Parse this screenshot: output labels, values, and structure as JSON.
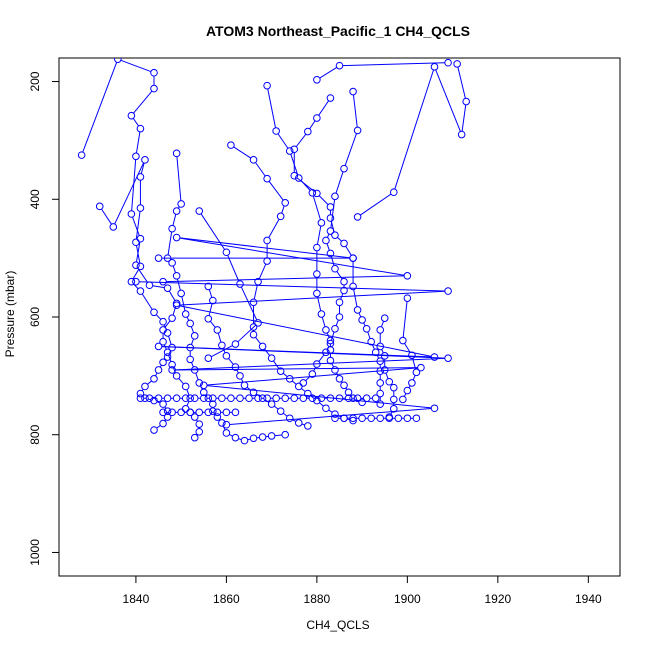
{
  "chart_data": {
    "type": "scatter",
    "title": "ATOM3 Northeast_Pacific_1 CH4_QCLS",
    "xlabel": "CH4_QCLS",
    "ylabel": "Pressure (mbar)",
    "xlim": [
      1823,
      1947
    ],
    "ylim": [
      1040,
      160
    ],
    "y_reversed": true,
    "x_ticks": [
      1840,
      1860,
      1880,
      1900,
      1920,
      1940
    ],
    "y_ticks": [
      200,
      400,
      600,
      800,
      1000
    ],
    "grid": false,
    "legend": "none",
    "series_color": "#0000FF",
    "series": [
      {
        "name": "",
        "points": [
          [
            1832,
            412
          ],
          [
            1835,
            447
          ],
          [
            1842,
            333
          ],
          [
            1841,
            362
          ],
          [
            1841,
            415
          ],
          [
            1840,
            473
          ],
          [
            1841,
            514
          ],
          [
            1839,
            540
          ],
          [
            1841,
            556
          ],
          [
            1844,
            592
          ],
          [
            1846,
            608
          ],
          [
            1847,
            627
          ],
          [
            1848,
            652
          ],
          [
            1847,
            668
          ],
          [
            1846,
            677
          ],
          [
            1845,
            690
          ],
          [
            1844,
            705
          ],
          [
            1842,
            718
          ],
          [
            1841,
            730
          ],
          [
            1842,
            738
          ],
          [
            1844,
            742
          ],
          [
            1846,
            748
          ],
          [
            1847,
            760
          ],
          [
            1847,
            770
          ],
          [
            1846,
            781
          ],
          [
            1844,
            792
          ]
        ]
      },
      {
        "name": "",
        "points": [
          [
            1828,
            325
          ],
          [
            1836,
            162
          ],
          [
            1844,
            185
          ],
          [
            1844,
            212
          ],
          [
            1839,
            258
          ],
          [
            1841,
            280
          ],
          [
            1840,
            327
          ],
          [
            1839,
            425
          ],
          [
            1841,
            467
          ],
          [
            1840,
            512
          ],
          [
            1843,
            546
          ],
          [
            1847,
            551
          ],
          [
            1849,
            577
          ],
          [
            1848,
            602
          ],
          [
            1846,
            622
          ],
          [
            1846,
            642
          ],
          [
            1847,
            660
          ],
          [
            1848,
            681
          ],
          [
            1849,
            700
          ],
          [
            1851,
            718
          ],
          [
            1852,
            738
          ],
          [
            1851,
            756
          ],
          [
            1852,
            762
          ],
          [
            1853,
            770
          ],
          [
            1854,
            782
          ],
          [
            1854,
            795
          ],
          [
            1853,
            805
          ]
        ]
      },
      {
        "name": "",
        "points": [
          [
            1849,
            322
          ],
          [
            1850,
            408
          ],
          [
            1849,
            420
          ],
          [
            1848,
            450
          ],
          [
            1847,
            500
          ],
          [
            1848,
            508
          ],
          [
            1849,
            530
          ],
          [
            1850,
            560
          ],
          [
            1851,
            595
          ],
          [
            1852,
            611
          ],
          [
            1853,
            632
          ],
          [
            1852,
            652
          ],
          [
            1852,
            672
          ],
          [
            1853,
            690
          ],
          [
            1854,
            712
          ],
          [
            1855,
            728
          ],
          [
            1856,
            738
          ],
          [
            1857,
            748
          ],
          [
            1857,
            760
          ],
          [
            1858,
            770
          ],
          [
            1859,
            780
          ],
          [
            1860,
            797
          ],
          [
            1862,
            805
          ],
          [
            1864,
            810
          ],
          [
            1866,
            806
          ],
          [
            1868,
            804
          ],
          [
            1870,
            802
          ],
          [
            1873,
            800
          ]
        ]
      },
      {
        "name": "",
        "points": [
          [
            1856,
            548
          ],
          [
            1857,
            572
          ],
          [
            1856,
            603
          ],
          [
            1858,
            622
          ],
          [
            1859,
            648
          ],
          [
            1860,
            666
          ],
          [
            1862,
            685
          ],
          [
            1863,
            700
          ],
          [
            1864,
            716
          ],
          [
            1866,
            728
          ],
          [
            1868,
            738
          ],
          [
            1870,
            748
          ],
          [
            1872,
            760
          ],
          [
            1874,
            772
          ],
          [
            1876,
            780
          ],
          [
            1878,
            785
          ]
        ]
      },
      {
        "name": "",
        "points": [
          [
            1861,
            308
          ],
          [
            1866,
            333
          ],
          [
            1869,
            365
          ],
          [
            1873,
            406
          ],
          [
            1872,
            429
          ],
          [
            1869,
            470
          ],
          [
            1869,
            505
          ],
          [
            1867,
            540
          ],
          [
            1866,
            575
          ],
          [
            1866,
            617
          ],
          [
            1866,
            630
          ],
          [
            1868,
            650
          ],
          [
            1870,
            670
          ],
          [
            1872,
            692
          ],
          [
            1874,
            705
          ],
          [
            1876,
            718
          ],
          [
            1878,
            730
          ],
          [
            1880,
            742
          ],
          [
            1882,
            755
          ],
          [
            1884,
            765
          ],
          [
            1886,
            772
          ],
          [
            1888,
            776
          ]
        ]
      },
      {
        "name": "",
        "points": [
          [
            1869,
            207
          ],
          [
            1871,
            284
          ],
          [
            1874,
            318
          ],
          [
            1876,
            364
          ],
          [
            1879,
            389
          ],
          [
            1881,
            440
          ],
          [
            1880,
            482
          ],
          [
            1880,
            527
          ],
          [
            1880,
            560
          ],
          [
            1881,
            595
          ],
          [
            1882,
            622
          ],
          [
            1883,
            640
          ],
          [
            1883,
            656
          ],
          [
            1883,
            674
          ],
          [
            1884,
            690
          ],
          [
            1885,
            705
          ],
          [
            1886,
            716
          ],
          [
            1887,
            728
          ],
          [
            1888,
            738
          ],
          [
            1890,
            745
          ]
        ]
      },
      {
        "name": "",
        "points": [
          [
            1883,
            228
          ],
          [
            1880,
            262
          ],
          [
            1878,
            285
          ],
          [
            1875,
            315
          ],
          [
            1875,
            360
          ],
          [
            1880,
            390
          ],
          [
            1883,
            413
          ],
          [
            1883,
            432
          ],
          [
            1884,
            461
          ],
          [
            1886,
            475
          ],
          [
            1888,
            500
          ],
          [
            1888,
            548
          ],
          [
            1889,
            588
          ],
          [
            1890,
            605
          ],
          [
            1891,
            620
          ],
          [
            1892,
            642
          ],
          [
            1893,
            660
          ],
          [
            1894,
            675
          ],
          [
            1894,
            692
          ],
          [
            1894,
            712
          ],
          [
            1894,
            730
          ],
          [
            1894,
            748
          ]
        ]
      },
      {
        "name": "",
        "points": [
          [
            1888,
            217
          ],
          [
            1889,
            283
          ],
          [
            1886,
            348
          ],
          [
            1884,
            395
          ],
          [
            1883,
            454
          ],
          [
            1882,
            470
          ],
          [
            1883,
            492
          ],
          [
            1884,
            518
          ],
          [
            1886,
            540
          ],
          [
            1886,
            555
          ],
          [
            1885,
            575
          ],
          [
            1885,
            600
          ],
          [
            1884,
            620
          ],
          [
            1883,
            645
          ],
          [
            1882,
            660
          ],
          [
            1880,
            680
          ],
          [
            1879,
            697
          ],
          [
            1877,
            712
          ]
        ]
      },
      {
        "name": "",
        "points": [
          [
            1889,
            430
          ],
          [
            1897,
            388
          ],
          [
            1906,
            175
          ],
          [
            1912,
            290
          ],
          [
            1913,
            234
          ],
          [
            1911,
            170
          ]
        ]
      },
      {
        "name": "",
        "points": [
          [
            1900,
            568
          ],
          [
            1899,
            640
          ],
          [
            1901,
            665
          ],
          [
            1902,
            694
          ],
          [
            1901,
            712
          ],
          [
            1900,
            725
          ],
          [
            1899,
            740
          ]
        ]
      },
      {
        "name": "",
        "points": [
          [
            1895,
            602
          ],
          [
            1894,
            622
          ],
          [
            1894,
            650
          ],
          [
            1895,
            666
          ],
          [
            1895,
            690
          ],
          [
            1896,
            710
          ],
          [
            1897,
            720
          ],
          [
            1897,
            740
          ],
          [
            1897,
            756
          ],
          [
            1896,
            770
          ]
        ]
      },
      {
        "name": "",
        "points": [
          [
            1909,
            168
          ],
          [
            1885,
            173
          ],
          [
            1880,
            197
          ]
        ]
      },
      {
        "name": "",
        "points": [
          [
            1841,
            738
          ],
          [
            1843,
            738
          ],
          [
            1845,
            738
          ],
          [
            1847,
            738
          ],
          [
            1849,
            738
          ],
          [
            1851,
            738
          ],
          [
            1853,
            738
          ],
          [
            1855,
            738
          ],
          [
            1857,
            738
          ],
          [
            1859,
            738
          ],
          [
            1861,
            738
          ],
          [
            1863,
            738
          ],
          [
            1865,
            738
          ],
          [
            1867,
            738
          ],
          [
            1869,
            738
          ],
          [
            1871,
            738
          ],
          [
            1873,
            738
          ],
          [
            1875,
            738
          ],
          [
            1877,
            738
          ],
          [
            1879,
            738
          ],
          [
            1881,
            738
          ],
          [
            1883,
            738
          ],
          [
            1885,
            738
          ],
          [
            1887,
            738
          ],
          [
            1889,
            738
          ],
          [
            1891,
            738
          ],
          [
            1893,
            738
          ]
        ]
      },
      {
        "name": "",
        "points": [
          [
            1846,
            762
          ],
          [
            1848,
            762
          ],
          [
            1850,
            762
          ],
          [
            1852,
            762
          ],
          [
            1854,
            762
          ],
          [
            1856,
            762
          ],
          [
            1858,
            762
          ],
          [
            1860,
            762
          ],
          [
            1862,
            762
          ]
        ]
      },
      {
        "name": "",
        "points": [
          [
            1884,
            772
          ],
          [
            1886,
            772
          ],
          [
            1888,
            772
          ],
          [
            1890,
            772
          ],
          [
            1892,
            772
          ],
          [
            1894,
            772
          ],
          [
            1896,
            772
          ],
          [
            1898,
            772
          ],
          [
            1900,
            772
          ],
          [
            1902,
            772
          ]
        ]
      },
      {
        "name": "",
        "points": [
          [
            1840,
            540
          ],
          [
            1909,
            556
          ],
          [
            1849,
            580
          ],
          [
            1906,
            668
          ],
          [
            1845,
            650
          ],
          [
            1909,
            670
          ],
          [
            1848,
            690
          ],
          [
            1903,
            686
          ],
          [
            1855,
            716
          ],
          [
            1906,
            755
          ],
          [
            1860,
            783
          ]
        ]
      },
      {
        "name": "",
        "points": [
          [
            1845,
            500
          ],
          [
            1888,
            500
          ],
          [
            1849,
            465
          ],
          [
            1900,
            530
          ],
          [
            1846,
            540
          ]
        ]
      },
      {
        "name": "",
        "points": [
          [
            1854,
            420
          ],
          [
            1860,
            490
          ],
          [
            1863,
            544
          ],
          [
            1867,
            610
          ],
          [
            1862,
            646
          ],
          [
            1856,
            670
          ]
        ]
      }
    ]
  }
}
